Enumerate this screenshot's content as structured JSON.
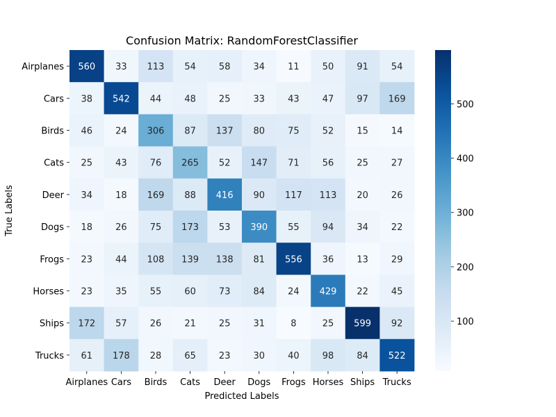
{
  "chart_data": {
    "type": "heatmap",
    "title": "Confusion Matrix: RandomForestClassifier",
    "xlabel": "Predicted Labels",
    "ylabel": "True Labels",
    "x_categories": [
      "Airplanes",
      "Cars",
      "Birds",
      "Cats",
      "Deer",
      "Dogs",
      "Frogs",
      "Horses",
      "Ships",
      "Trucks"
    ],
    "y_categories": [
      "Airplanes",
      "Cars",
      "Birds",
      "Cats",
      "Deer",
      "Dogs",
      "Frogs",
      "Horses",
      "Ships",
      "Trucks"
    ],
    "values": [
      [
        560,
        33,
        113,
        54,
        58,
        34,
        11,
        50,
        91,
        54
      ],
      [
        38,
        542,
        44,
        48,
        25,
        33,
        43,
        47,
        97,
        169
      ],
      [
        46,
        24,
        306,
        87,
        137,
        80,
        75,
        52,
        15,
        14
      ],
      [
        25,
        43,
        76,
        265,
        52,
        147,
        71,
        56,
        25,
        27
      ],
      [
        34,
        18,
        169,
        88,
        416,
        90,
        117,
        113,
        20,
        26
      ],
      [
        18,
        26,
        75,
        173,
        53,
        390,
        55,
        94,
        34,
        22
      ],
      [
        23,
        44,
        108,
        139,
        138,
        81,
        556,
        36,
        13,
        29
      ],
      [
        23,
        35,
        55,
        60,
        73,
        84,
        24,
        429,
        22,
        45
      ],
      [
        172,
        57,
        26,
        21,
        25,
        31,
        8,
        25,
        599,
        92
      ],
      [
        61,
        178,
        28,
        65,
        23,
        30,
        40,
        98,
        84,
        522
      ]
    ],
    "colormap": "Blues",
    "colorbar": {
      "range": [
        8,
        599
      ],
      "ticks": [
        100,
        200,
        300,
        400,
        500
      ],
      "tick_labels": [
        "100",
        "200",
        "300",
        "400",
        "500"
      ]
    }
  }
}
